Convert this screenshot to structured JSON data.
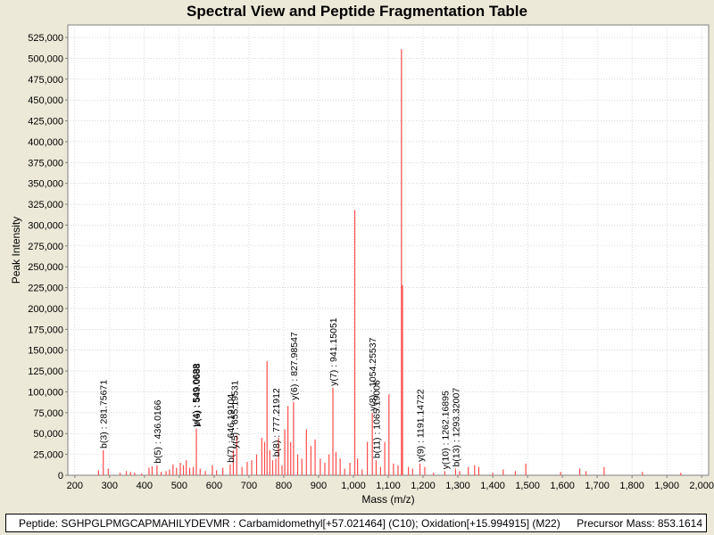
{
  "chart_data": {
    "type": "bar",
    "title": "Spectral View and Peptide Fragmentation Table",
    "xlabel": "Mass (m/z)",
    "ylabel": "Peak Intensity",
    "xlim": [
      180,
      2020
    ],
    "ylim": [
      0,
      540000
    ],
    "x_ticks": [
      200,
      300,
      400,
      500,
      600,
      700,
      800,
      900,
      1000,
      1100,
      1200,
      1300,
      1400,
      1500,
      1600,
      1700,
      1800,
      1900,
      2000
    ],
    "x_tick_labels": [
      "200",
      "300",
      "400",
      "500",
      "600",
      "700",
      "800",
      "900",
      "1,000",
      "1,100",
      "1,200",
      "1,300",
      "1,400",
      "1,500",
      "1,600",
      "1,700",
      "1,800",
      "1,900",
      "2,000"
    ],
    "y_ticks": [
      0,
      25000,
      50000,
      75000,
      100000,
      125000,
      150000,
      175000,
      200000,
      225000,
      250000,
      275000,
      300000,
      325000,
      350000,
      375000,
      400000,
      425000,
      450000,
      475000,
      500000,
      525000
    ],
    "y_tick_labels": [
      "0",
      "25,000",
      "50,000",
      "75,000",
      "100,000",
      "125,000",
      "150,000",
      "175,000",
      "200,000",
      "225,000",
      "250,000",
      "275,000",
      "300,000",
      "325,000",
      "350,000",
      "375,000",
      "400,000",
      "425,000",
      "450,000",
      "475,000",
      "500,000",
      "525,000"
    ],
    "grid": true,
    "series_color": "#ff4b4b",
    "peaks": [
      {
        "mz": 268,
        "intensity": 6000
      },
      {
        "mz": 281.76,
        "intensity": 30000
      },
      {
        "mz": 296,
        "intensity": 8000
      },
      {
        "mz": 330,
        "intensity": 3000
      },
      {
        "mz": 348,
        "intensity": 5000
      },
      {
        "mz": 360,
        "intensity": 4000
      },
      {
        "mz": 372,
        "intensity": 3000
      },
      {
        "mz": 392,
        "intensity": 2000
      },
      {
        "mz": 413,
        "intensity": 9000
      },
      {
        "mz": 422,
        "intensity": 11000
      },
      {
        "mz": 436.02,
        "intensity": 12000
      },
      {
        "mz": 448,
        "intensity": 4000
      },
      {
        "mz": 462,
        "intensity": 5000
      },
      {
        "mz": 472,
        "intensity": 7000
      },
      {
        "mz": 482,
        "intensity": 13000
      },
      {
        "mz": 492,
        "intensity": 9000
      },
      {
        "mz": 503,
        "intensity": 15000
      },
      {
        "mz": 512,
        "intensity": 12000
      },
      {
        "mz": 520,
        "intensity": 18000
      },
      {
        "mz": 530,
        "intensity": 9000
      },
      {
        "mz": 540,
        "intensity": 10000
      },
      {
        "mz": 549.06,
        "intensity": 56000
      },
      {
        "mz": 560,
        "intensity": 8000
      },
      {
        "mz": 575,
        "intensity": 5000
      },
      {
        "mz": 595,
        "intensity": 12000
      },
      {
        "mz": 607,
        "intensity": 6000
      },
      {
        "mz": 625,
        "intensity": 9000
      },
      {
        "mz": 646.19,
        "intensity": 13000
      },
      {
        "mz": 655.2,
        "intensity": 30000
      },
      {
        "mz": 665,
        "intensity": 48000
      },
      {
        "mz": 680,
        "intensity": 10000
      },
      {
        "mz": 695,
        "intensity": 16000
      },
      {
        "mz": 708,
        "intensity": 18000
      },
      {
        "mz": 722,
        "intensity": 25000
      },
      {
        "mz": 737,
        "intensity": 45000
      },
      {
        "mz": 745,
        "intensity": 40000
      },
      {
        "mz": 752,
        "intensity": 137000
      },
      {
        "mz": 760,
        "intensity": 30000
      },
      {
        "mz": 768,
        "intensity": 18000
      },
      {
        "mz": 777.22,
        "intensity": 20000
      },
      {
        "mz": 785,
        "intensity": 45000
      },
      {
        "mz": 795,
        "intensity": 12000
      },
      {
        "mz": 803,
        "intensity": 55000
      },
      {
        "mz": 812,
        "intensity": 83000
      },
      {
        "mz": 820,
        "intensity": 40000
      },
      {
        "mz": 827.99,
        "intensity": 88000
      },
      {
        "mz": 840,
        "intensity": 25000
      },
      {
        "mz": 852,
        "intensity": 20000
      },
      {
        "mz": 865,
        "intensity": 55000
      },
      {
        "mz": 878,
        "intensity": 35000
      },
      {
        "mz": 890,
        "intensity": 43000
      },
      {
        "mz": 905,
        "intensity": 20000
      },
      {
        "mz": 918,
        "intensity": 15000
      },
      {
        "mz": 930,
        "intensity": 25000
      },
      {
        "mz": 941.15,
        "intensity": 105000
      },
      {
        "mz": 950,
        "intensity": 28000
      },
      {
        "mz": 962,
        "intensity": 20000
      },
      {
        "mz": 975,
        "intensity": 8000
      },
      {
        "mz": 990,
        "intensity": 15000
      },
      {
        "mz": 1004,
        "intensity": 318000
      },
      {
        "mz": 1012,
        "intensity": 20000
      },
      {
        "mz": 1025,
        "intensity": 7000
      },
      {
        "mz": 1040,
        "intensity": 40000
      },
      {
        "mz": 1054.26,
        "intensity": 75000
      },
      {
        "mz": 1065.19,
        "intensity": 18000
      },
      {
        "mz": 1078,
        "intensity": 10000
      },
      {
        "mz": 1090,
        "intensity": 40000
      },
      {
        "mz": 1102,
        "intensity": 97000
      },
      {
        "mz": 1115,
        "intensity": 14000
      },
      {
        "mz": 1128,
        "intensity": 12000
      },
      {
        "mz": 1138,
        "intensity": 511000
      },
      {
        "mz": 1141,
        "intensity": 228000
      },
      {
        "mz": 1158,
        "intensity": 10000
      },
      {
        "mz": 1170,
        "intensity": 8000
      },
      {
        "mz": 1191.15,
        "intensity": 14000
      },
      {
        "mz": 1205,
        "intensity": 10000
      },
      {
        "mz": 1230,
        "intensity": 3000
      },
      {
        "mz": 1262.17,
        "intensity": 5000
      },
      {
        "mz": 1293.32,
        "intensity": 8000
      },
      {
        "mz": 1305,
        "intensity": 5000
      },
      {
        "mz": 1330,
        "intensity": 10000
      },
      {
        "mz": 1348,
        "intensity": 12000
      },
      {
        "mz": 1360,
        "intensity": 10000
      },
      {
        "mz": 1400,
        "intensity": 3000
      },
      {
        "mz": 1430,
        "intensity": 7000
      },
      {
        "mz": 1465,
        "intensity": 5000
      },
      {
        "mz": 1495,
        "intensity": 14000
      },
      {
        "mz": 1595,
        "intensity": 4000
      },
      {
        "mz": 1650,
        "intensity": 8000
      },
      {
        "mz": 1668,
        "intensity": 5000
      },
      {
        "mz": 1720,
        "intensity": 10000
      },
      {
        "mz": 1830,
        "intensity": 4000
      },
      {
        "mz": 1940,
        "intensity": 3000
      }
    ],
    "annotations": [
      {
        "label": "b(3) : 281.75671",
        "mz": 281.76,
        "intensity": 30000
      },
      {
        "label": "b(5) : 436.0166",
        "mz": 436.02,
        "intensity": 12000
      },
      {
        "label": "y(4) : 549.0688",
        "mz": 546.6,
        "intensity": 56000
      },
      {
        "label": "b(6) : 549.0688",
        "mz": 549.06,
        "intensity": 56000
      },
      {
        "label": "b(7) : 646.19104",
        "mz": 646.19,
        "intensity": 13000
      },
      {
        "label": "y(5) : 655.19531",
        "mz": 657.6,
        "intensity": 30000
      },
      {
        "label": "b(8) : 777.21912",
        "mz": 777.22,
        "intensity": 20000
      },
      {
        "label": "y(6) : 827.98547",
        "mz": 827.99,
        "intensity": 88000
      },
      {
        "label": "y(7) : 941.15051",
        "mz": 941.15,
        "intensity": 105000
      },
      {
        "label": "b(11) : 1065.19006",
        "mz": 1065.19,
        "intensity": 18000
      },
      {
        "label": "y(8) : 1054.25537",
        "mz": 1054.26,
        "intensity": 75000
      },
      {
        "label": "y(9) : 1191.14722",
        "mz": 1191.15,
        "intensity": 14000
      },
      {
        "label": "y(10) : 1262.16895",
        "mz": 1262.17,
        "intensity": 5000
      },
      {
        "label": "b(13) : 1293.32007",
        "mz": 1293.32,
        "intensity": 8000
      }
    ]
  },
  "footer": {
    "peptide": "Peptide: SGHPGLPMGCAPMAHILYDEVMR : Carbamidomethyl[+57.021464] (C10); Oxidation[+15.994915] (M22)",
    "precursor": "Precursor Mass: 853.1614"
  }
}
